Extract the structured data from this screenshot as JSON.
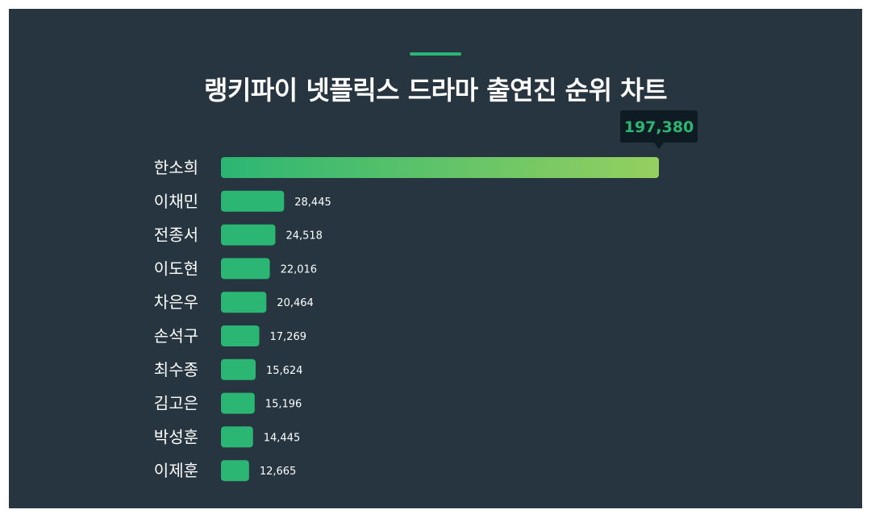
{
  "title": "랭키파이 넷플릭스 드라마 출연진 순위 차트",
  "colors": {
    "background": "#263540",
    "bar": "#2bb673",
    "bar_gradient_end": "#95d05f",
    "tooltip_bg": "#0f1b23",
    "tooltip_text": "#2bb673",
    "label": "#ffffff"
  },
  "chart_data": {
    "type": "bar",
    "orientation": "horizontal",
    "title": "랭키파이 넷플릭스 드라마 출연진 순위 차트",
    "categories": [
      "한소희",
      "이채민",
      "전종서",
      "이도현",
      "차은우",
      "손석구",
      "최수종",
      "김고은",
      "박성훈",
      "이제훈"
    ],
    "values": [
      197380,
      28445,
      24518,
      22016,
      20464,
      17269,
      15624,
      15196,
      14445,
      12665
    ],
    "value_labels": [
      "197,380",
      "28,445",
      "24,518",
      "22,016",
      "20,464",
      "17,269",
      "15,624",
      "15,196",
      "14,445",
      "12,665"
    ],
    "xlim": [
      0,
      197380
    ],
    "grid": false,
    "legend": "none"
  }
}
